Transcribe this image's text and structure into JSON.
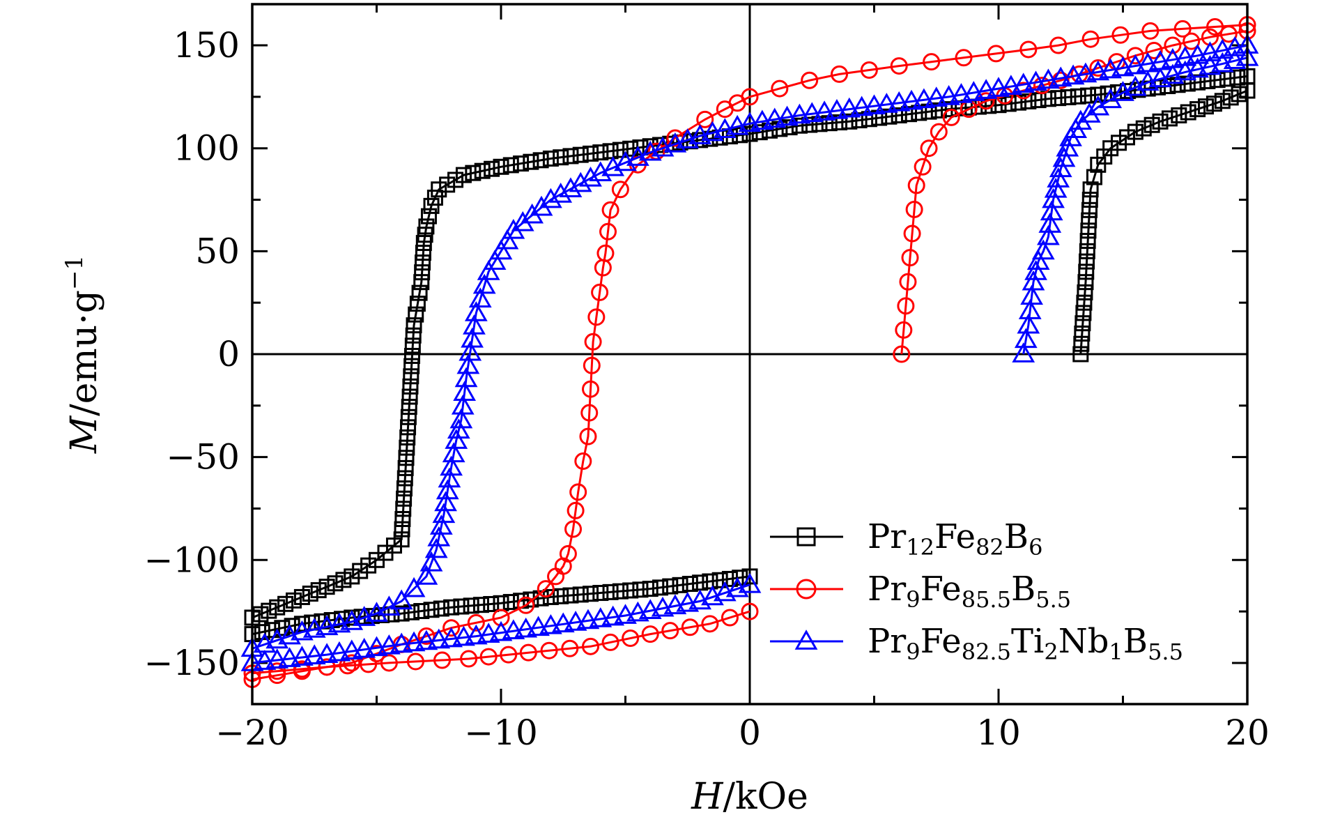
{
  "chart_data": {
    "type": "line",
    "title": "",
    "xlabel": {
      "italic": "H",
      "rest": "/kOe"
    },
    "ylabel": {
      "italic": "M",
      "rest": "/emu·g",
      "sup": "−1"
    },
    "xlim": [
      -20,
      20
    ],
    "ylim": [
      -170,
      170
    ],
    "xticks": [
      -20,
      -10,
      0,
      10,
      20
    ],
    "xtick_labels": [
      "−20",
      "−10",
      "0",
      "10",
      "20"
    ],
    "yticks": [
      -150,
      -100,
      -50,
      0,
      50,
      100,
      150
    ],
    "ytick_labels": [
      "−150",
      "−100",
      "−50",
      "0",
      "50",
      "100",
      "150"
    ],
    "grid": false,
    "zero_lines": true,
    "legend_position": "bottom-right",
    "series": [
      {
        "name": "Pr12Fe82B6",
        "legend": [
          {
            "t": "Pr"
          },
          {
            "t": "12",
            "sub": true
          },
          {
            "t": "Fe"
          },
          {
            "t": "82",
            "sub": true
          },
          {
            "t": "B"
          },
          {
            "t": "6",
            "sub": true
          }
        ],
        "color": "#000000",
        "marker": "square",
        "initial": [
          [
            13.3,
            0
          ],
          [
            13.5,
            35
          ],
          [
            13.7,
            80
          ],
          [
            14.0,
            92
          ],
          [
            14.5,
            100
          ],
          [
            15.5,
            108
          ],
          [
            16.5,
            113
          ],
          [
            18,
            119
          ],
          [
            19,
            123
          ],
          [
            20,
            128
          ]
        ],
        "descending": [
          [
            20,
            135
          ],
          [
            18,
            132
          ],
          [
            16,
            129
          ],
          [
            14,
            126
          ],
          [
            12,
            124
          ],
          [
            10,
            121
          ],
          [
            8,
            119
          ],
          [
            6,
            116
          ],
          [
            4,
            113
          ],
          [
            2,
            111
          ],
          [
            0,
            107
          ],
          [
            -2,
            104
          ],
          [
            -4,
            101
          ],
          [
            -6,
            98
          ],
          [
            -8,
            95
          ],
          [
            -10,
            91
          ],
          [
            -11.5,
            87
          ],
          [
            -12.5,
            80
          ],
          [
            -12.8,
            72
          ],
          [
            -13.0,
            62
          ],
          [
            -13.1,
            54
          ],
          [
            -13.2,
            35
          ],
          [
            -13.5,
            14
          ],
          [
            -14.0,
            -90
          ],
          [
            -14.3,
            -93
          ],
          [
            -15.0,
            -100
          ],
          [
            -16,
            -108
          ],
          [
            -17,
            -113
          ],
          [
            -18,
            -118
          ],
          [
            -19,
            -123
          ],
          [
            -20,
            -128
          ]
        ],
        "ascending": [
          [
            -20,
            -136
          ],
          [
            -18,
            -131
          ],
          [
            -16,
            -128
          ],
          [
            -14,
            -126
          ],
          [
            -12,
            -123
          ],
          [
            -10,
            -121
          ],
          [
            -8,
            -118
          ],
          [
            -6,
            -116
          ],
          [
            -4,
            -114
          ],
          [
            -2,
            -111
          ],
          [
            0,
            -108
          ]
        ]
      },
      {
        "name": "Pr9Fe85.5B5.5",
        "legend": [
          {
            "t": "Pr"
          },
          {
            "t": "9",
            "sub": true
          },
          {
            "t": "Fe"
          },
          {
            "t": "85.5",
            "sub": true
          },
          {
            "t": "B"
          },
          {
            "t": "5.5",
            "sub": true
          }
        ],
        "color": "#ff0000",
        "marker": "circle",
        "initial": [
          [
            6.1,
            0
          ],
          [
            6.7,
            82
          ],
          [
            7.2,
            100
          ],
          [
            7.6,
            108
          ],
          [
            8.1,
            115
          ],
          [
            8.8,
            119
          ],
          [
            9.5,
            123
          ],
          [
            11,
            128
          ],
          [
            12.5,
            133
          ],
          [
            14,
            139
          ],
          [
            15.5,
            145
          ],
          [
            17,
            150
          ],
          [
            18.5,
            154
          ],
          [
            20,
            157
          ]
        ],
        "descending": [
          [
            20,
            160
          ],
          [
            18.7,
            159
          ],
          [
            17.4,
            158
          ],
          [
            16.1,
            157
          ],
          [
            14.9,
            155
          ],
          [
            13.7,
            153
          ],
          [
            12.4,
            150
          ],
          [
            11.2,
            148
          ],
          [
            9.9,
            146
          ],
          [
            8.6,
            144
          ],
          [
            7.3,
            142
          ],
          [
            6.0,
            140
          ],
          [
            4.8,
            138
          ],
          [
            3.6,
            136
          ],
          [
            2.4,
            133
          ],
          [
            1.2,
            129
          ],
          [
            0,
            125
          ],
          [
            -0.5,
            122
          ],
          [
            -1,
            119
          ],
          [
            -1.8,
            114
          ],
          [
            -3,
            105
          ],
          [
            -4.5,
            92
          ],
          [
            -5.2,
            80
          ],
          [
            -5.6,
            70
          ],
          [
            -5.8,
            49
          ],
          [
            -5.9,
            42
          ],
          [
            -6.3,
            6
          ],
          [
            -6.5,
            -40
          ],
          [
            -6.7,
            -52
          ],
          [
            -6.9,
            -67
          ],
          [
            -7.1,
            -85
          ],
          [
            -7.3,
            -97
          ],
          [
            -7.5,
            -103
          ],
          [
            -7.8,
            -108
          ],
          [
            -8.2,
            -114
          ],
          [
            -9.0,
            -122
          ],
          [
            -10,
            -128
          ],
          [
            -12,
            -133
          ],
          [
            -14,
            -141
          ],
          [
            -16,
            -150
          ],
          [
            -17,
            -152
          ],
          [
            -18,
            -154
          ],
          [
            -19,
            -156
          ],
          [
            -20,
            -158
          ]
        ],
        "ascending": [
          [
            -20,
            -155
          ],
          [
            -17,
            -152
          ],
          [
            -14.5,
            -150
          ],
          [
            -11.3,
            -148
          ],
          [
            -8.9,
            -145
          ],
          [
            -6.4,
            -142
          ],
          [
            -4.0,
            -136
          ],
          [
            -1.6,
            -131
          ],
          [
            0,
            -125
          ]
        ]
      },
      {
        "name": "Pr9Fe82.5Ti2Nb1B5.5",
        "legend": [
          {
            "t": "Pr"
          },
          {
            "t": "9",
            "sub": true
          },
          {
            "t": "Fe"
          },
          {
            "t": "82.5",
            "sub": true
          },
          {
            "t": "Ti"
          },
          {
            "t": "2",
            "sub": true
          },
          {
            "t": "Nb"
          },
          {
            "t": "1",
            "sub": true
          },
          {
            "t": "B"
          },
          {
            "t": "5.5",
            "sub": true
          }
        ],
        "color": "#0000ff",
        "marker": "triangle",
        "initial": [
          [
            11.0,
            0
          ],
          [
            11.2,
            14
          ],
          [
            11.4,
            35
          ],
          [
            11.6,
            45
          ],
          [
            11.8,
            50
          ],
          [
            12.0,
            57
          ],
          [
            12.2,
            75
          ],
          [
            12.5,
            90
          ],
          [
            12.9,
            105
          ],
          [
            13.3,
            113
          ],
          [
            14,
            120
          ],
          [
            15,
            127
          ],
          [
            16,
            132
          ],
          [
            17.5,
            137
          ],
          [
            19,
            141
          ],
          [
            20,
            144
          ]
        ],
        "descending": [
          [
            20,
            150
          ],
          [
            18,
            145
          ],
          [
            16,
            141
          ],
          [
            14,
            137
          ],
          [
            12,
            133
          ],
          [
            10,
            129
          ],
          [
            8,
            125
          ],
          [
            6,
            122
          ],
          [
            4,
            119
          ],
          [
            2,
            116
          ],
          [
            0,
            112
          ],
          [
            -2,
            106
          ],
          [
            -4,
            98
          ],
          [
            -6,
            88
          ],
          [
            -8,
            75
          ],
          [
            -9.5,
            60
          ],
          [
            -10.5,
            40
          ],
          [
            -11,
            20
          ],
          [
            -11.4,
            -12
          ],
          [
            -11.6,
            -32
          ],
          [
            -11.8,
            -42
          ],
          [
            -12.0,
            -55
          ],
          [
            -12.3,
            -78
          ],
          [
            -12.6,
            -95
          ],
          [
            -13.0,
            -108
          ],
          [
            -13.5,
            -114
          ],
          [
            -14.0,
            -120
          ],
          [
            -15,
            -126
          ],
          [
            -16,
            -130
          ],
          [
            -18,
            -135
          ],
          [
            -20,
            -143
          ]
        ],
        "ascending": [
          [
            -20,
            -150
          ],
          [
            -17,
            -146
          ],
          [
            -14,
            -141
          ],
          [
            -11,
            -137
          ],
          [
            -8,
            -132
          ],
          [
            -5,
            -127
          ],
          [
            -2,
            -120
          ],
          [
            0,
            -112
          ]
        ]
      }
    ]
  }
}
